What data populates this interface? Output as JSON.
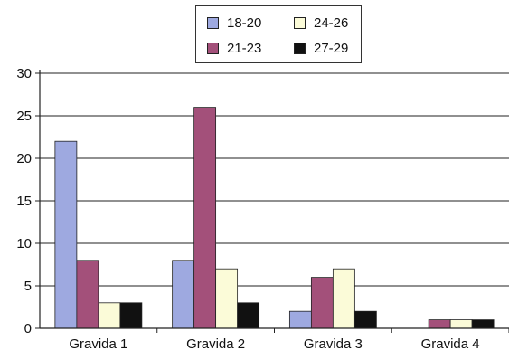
{
  "chart_data": {
    "type": "bar",
    "categories": [
      "Gravida 1",
      "Gravida 2",
      "Gravida 3",
      "Gravida 4"
    ],
    "series": [
      {
        "name": "18-20",
        "color": "#9ea9e0",
        "values": [
          22,
          8,
          2,
          0
        ]
      },
      {
        "name": "21-23",
        "color": "#a3507a",
        "values": [
          8,
          26,
          6,
          1
        ]
      },
      {
        "name": "24-26",
        "color": "#fbfbd8",
        "values": [
          3,
          7,
          7,
          1
        ]
      },
      {
        "name": "27-29",
        "color": "#111111",
        "values": [
          3,
          3,
          2,
          1
        ]
      }
    ],
    "ylim": [
      0,
      30
    ],
    "yticks": [
      "0",
      "5",
      "10",
      "15",
      "20",
      "25",
      "30"
    ],
    "grid": true,
    "legend_position": "top-center"
  }
}
